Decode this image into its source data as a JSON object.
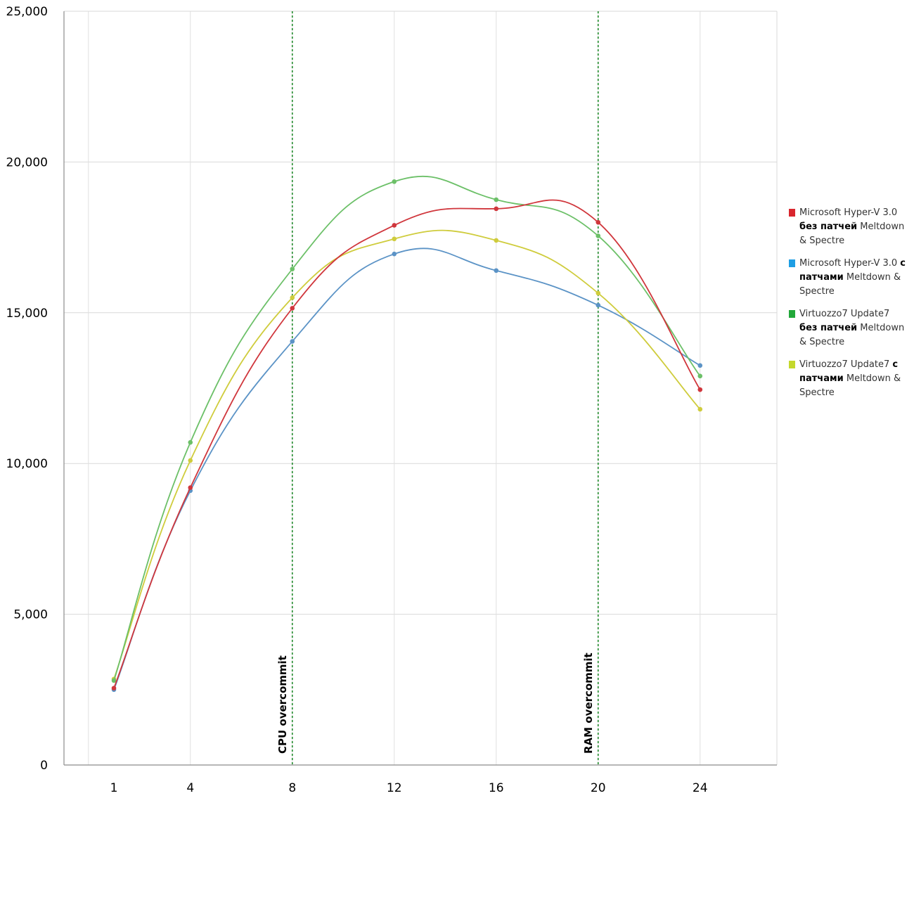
{
  "chart_data": {
    "type": "line",
    "title": "",
    "xlabel": "",
    "ylabel": "",
    "x": [
      1,
      4,
      8,
      12,
      16,
      20,
      24
    ],
    "x_ticks": [
      "1",
      "4",
      "8",
      "12",
      "16",
      "20",
      "24"
    ],
    "y_ticks": [
      "0",
      "5,000",
      "10,000",
      "15,000",
      "20,000",
      "25,000"
    ],
    "y_tick_values": [
      0,
      5000,
      10000,
      15000,
      20000,
      25000
    ],
    "ylim": [
      0,
      25000
    ],
    "grid": true,
    "legend_position": "right",
    "series": [
      {
        "name": "Microsoft Hyper-V 3.0 без патчей Meltdown & Spectre",
        "legend_plain_1": "Microsoft Hyper-V 3.0 ",
        "legend_bold": "без патчей",
        "legend_plain_2": " Meltdown & Spectre",
        "swatch_color": "#d9262e",
        "line_color": "#d0363c",
        "values": [
          2550,
          9200,
          15150,
          17900,
          18450,
          18000,
          12450
        ]
      },
      {
        "name": "Microsoft Hyper-V 3.0 с патчами Meltdown & Spectre",
        "legend_plain_1": "Microsoft Hyper-V 3.0 ",
        "legend_bold": "с патчами",
        "legend_plain_2": " Meltdown & Spectre",
        "swatch_color": "#1e9ee4",
        "line_color": "#5b93c6",
        "values": [
          2500,
          9100,
          14050,
          16950,
          16400,
          15250,
          13250
        ]
      },
      {
        "name": "Virtuozzo7 Update7 без патчей Meltdown & Spectre",
        "legend_plain_1": "Virtuozzo7 Update7 ",
        "legend_bold": "без патчей",
        "legend_plain_2": " Meltdown & Spectre",
        "swatch_color": "#22a83a",
        "line_color": "#6cc068",
        "values": [
          2800,
          10700,
          16450,
          19350,
          18750,
          17550,
          12900
        ]
      },
      {
        "name": "Virtuozzo7 Update7 с патчами Meltdown & Spectre",
        "legend_plain_1": "Virtuozzo7 Update7 ",
        "legend_bold": "с патчами",
        "legend_plain_2": " Meltdown & Spectre",
        "swatch_color": "#c4d82c",
        "line_color": "#cfcc3c",
        "values": [
          2850,
          10100,
          15500,
          17450,
          17400,
          15650,
          11800
        ]
      }
    ],
    "annotations": [
      {
        "x": 8,
        "label": "CPU overcommit",
        "color": "#1f8a2a"
      },
      {
        "x": 20,
        "label": "RAM overcommit",
        "color": "#1f8a2a"
      }
    ]
  }
}
